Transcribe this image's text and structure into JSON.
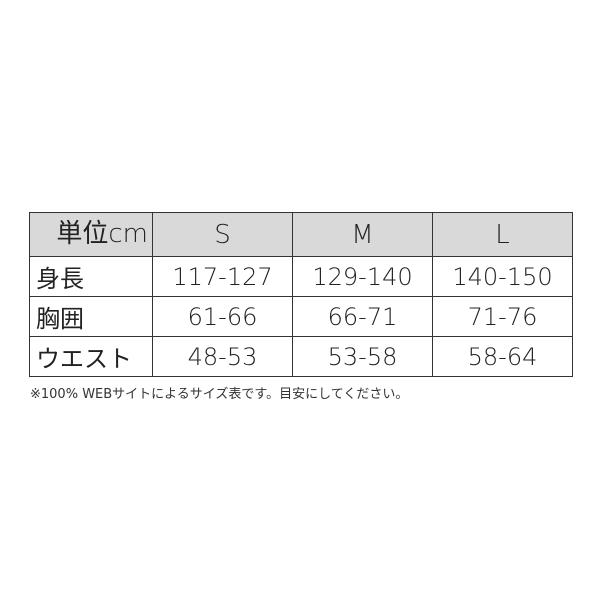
{
  "table": {
    "unit_label": "単位cm",
    "sizes": [
      "S",
      "M",
      "L"
    ],
    "rows": [
      {
        "label": "身長",
        "values": [
          "117-127",
          "129-140",
          "140-150"
        ]
      },
      {
        "label": "胸囲",
        "values": [
          "61-66",
          "66-71",
          "71-76"
        ]
      },
      {
        "label": "ウエスト",
        "values": [
          "48-53",
          "53-58",
          "58-64"
        ]
      }
    ],
    "header_bg": "#d9d9d9"
  },
  "note": "※100% WEBサイトによるサイズ表です。目安にしてください。"
}
